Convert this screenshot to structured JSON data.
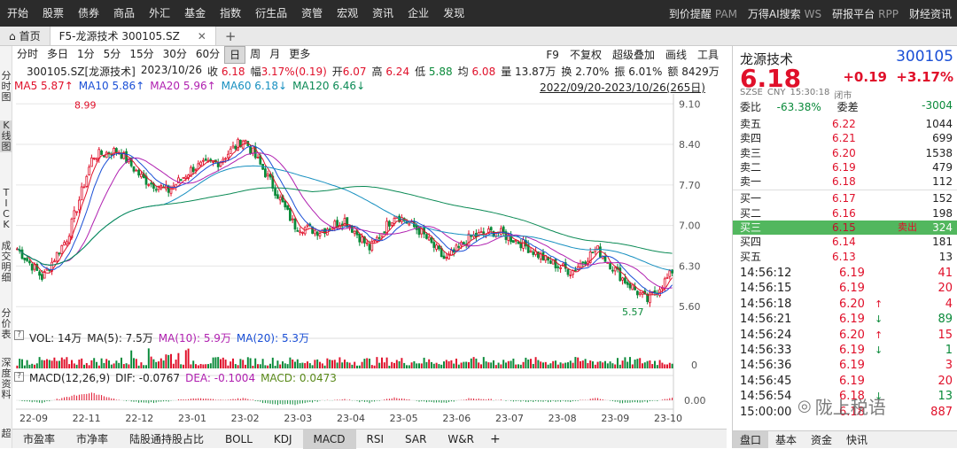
{
  "menu": {
    "items": [
      "开始",
      "股票",
      "债券",
      "商品",
      "外汇",
      "基金",
      "指数",
      "衍生品",
      "资管",
      "宏观",
      "资讯",
      "企业",
      "发现"
    ],
    "right": [
      {
        "label": "到价提醒",
        "en": "PAM"
      },
      {
        "label": "万得AI搜索",
        "en": "WS"
      },
      {
        "label": "研报平台",
        "en": "RPP"
      },
      {
        "label": "财经资讯",
        "en": ""
      }
    ]
  },
  "tabs": {
    "home": "首页",
    "active": "F5-龙源技术 300105.SZ",
    "add": "+"
  },
  "left_strip": [
    "分时图",
    "K线图",
    "TICK",
    "成交明细",
    "分价表",
    "深度资料",
    "超"
  ],
  "toolbar": {
    "periods": [
      "分时",
      "多日",
      "1分",
      "5分",
      "15分",
      "30分",
      "60分",
      "日",
      "周",
      "月",
      "更多"
    ],
    "active_period": "日",
    "right": [
      "F9",
      "不复权",
      "超级叠加",
      "画线",
      "工具"
    ]
  },
  "info": {
    "code": "300105.SZ[龙源技术]",
    "date": "2023/10/26",
    "close_label": "收",
    "close": "6.18",
    "chg_label": "幅",
    "chg": "3.17%(0.19)",
    "open_label": "开",
    "open": "6.07",
    "high_label": "高",
    "high": "6.24",
    "low_label": "低",
    "low": "5.88",
    "avg_label": "均",
    "avg": "6.08",
    "vol_label": "量",
    "vol": "13.87万",
    "turn_label": "换",
    "turn": "2.70%",
    "amp_label": "振",
    "amp": "6.01%",
    "amt_label": "额",
    "amt": "8429万"
  },
  "ma": {
    "ma5": "MA5 5.87↑",
    "ma10": "MA10 5.86↑",
    "ma20": "MA20 5.96↑",
    "ma60": "MA60 6.18↓",
    "ma120": "MA120 6.46↓",
    "range": "2022/09/20-2023/10/26(265日)"
  },
  "volume": {
    "title": "VOL: 14万",
    "ma5": "MA(5): 7.5万",
    "ma10": "MA(10): 5.9万",
    "ma20": "MA(20): 5.3万",
    "zero": "0"
  },
  "macd": {
    "title": "MACD(12,26,9)",
    "dif": "DIF: -0.0767",
    "dea": "DEA: -0.1004",
    "macd": "MACD: 0.0473",
    "zero": "0.00"
  },
  "bottom_tabs": [
    "市盈率",
    "市净率",
    "陆股通持股占比",
    "BOLL",
    "KDJ",
    "MACD",
    "RSI",
    "SAR",
    "W&R",
    "+"
  ],
  "bottom_active": "MACD",
  "chart_data": {
    "type": "candlestick",
    "y_ticks": [
      9.1,
      8.4,
      7.7,
      7.0,
      6.3,
      5.6
    ],
    "ylim": [
      5.45,
      9.15
    ],
    "x_labels": [
      "22-09",
      "22-11",
      "22-12",
      "23-01",
      "23-02",
      "23-03",
      "23-04",
      "23-05",
      "23-06",
      "23-07",
      "23-08",
      "23-09",
      "23-10"
    ],
    "annotations": [
      {
        "label": "8.99",
        "value": 8.99
      },
      {
        "label": "5.57",
        "value": 5.57
      }
    ],
    "close_path": [
      [
        "22-09",
        6.6
      ],
      [
        "22-10",
        6.1
      ],
      [
        "22-11",
        6.8
      ],
      [
        "22-11",
        8.2
      ],
      [
        "22-12",
        8.3
      ],
      [
        "22-12",
        7.8
      ],
      [
        "23-01",
        7.6
      ],
      [
        "23-01",
        8.0
      ],
      [
        "23-02",
        8.1
      ],
      [
        "23-02",
        8.5
      ],
      [
        "23-03",
        7.8
      ],
      [
        "23-03",
        7.0
      ],
      [
        "23-04",
        6.9
      ],
      [
        "23-04",
        7.1
      ],
      [
        "23-04",
        6.6
      ],
      [
        "23-05",
        7.2
      ],
      [
        "23-05",
        6.9
      ],
      [
        "23-06",
        6.4
      ],
      [
        "23-06",
        6.8
      ],
      [
        "23-07",
        6.9
      ],
      [
        "23-07",
        6.7
      ],
      [
        "23-08",
        6.4
      ],
      [
        "23-08",
        6.2
      ],
      [
        "23-09",
        6.6
      ],
      [
        "23-09",
        6.1
      ],
      [
        "23-10",
        5.7
      ],
      [
        "23-10",
        6.18
      ]
    ],
    "series": [
      {
        "name": "MA5",
        "color": "#e0102a"
      },
      {
        "name": "MA10",
        "color": "#1a4fd6"
      },
      {
        "name": "MA20",
        "color": "#b020b0"
      },
      {
        "name": "MA60",
        "color": "#1890c0"
      },
      {
        "name": "MA120",
        "color": "#0b8a55"
      }
    ]
  },
  "quote": {
    "name": "龙源技术",
    "code": "300105",
    "price": "6.18",
    "chg": "+0.19",
    "pct": "+3.17%",
    "sub": [
      "SZSE",
      "CNY",
      "15:30:18",
      "闭市"
    ],
    "ratio_label": "委比",
    "ratio": "-63.38%",
    "diff_label": "委差",
    "diff": "-3004",
    "asks": [
      {
        "label": "卖五",
        "price": "6.22",
        "vol": "1044"
      },
      {
        "label": "卖四",
        "price": "6.21",
        "vol": "699"
      },
      {
        "label": "卖三",
        "price": "6.20",
        "vol": "1538"
      },
      {
        "label": "卖二",
        "price": "6.19",
        "vol": "479"
      },
      {
        "label": "卖一",
        "price": "6.18",
        "vol": "112"
      }
    ],
    "bids": [
      {
        "label": "买一",
        "price": "6.17",
        "vol": "152"
      },
      {
        "label": "买二",
        "price": "6.16",
        "vol": "198"
      },
      {
        "label": "买三",
        "price": "6.15",
        "vol": "324",
        "tag": "卖出"
      },
      {
        "label": "买四",
        "price": "6.14",
        "vol": "181"
      },
      {
        "label": "买五",
        "price": "6.13",
        "vol": "13"
      }
    ],
    "trades": [
      {
        "time": "14:56:12",
        "price": "6.19",
        "arrow": "",
        "vol": "41"
      },
      {
        "time": "14:56:15",
        "price": "6.19",
        "arrow": "",
        "vol": "20"
      },
      {
        "time": "14:56:18",
        "price": "6.20",
        "arrow": "up",
        "vol": "4"
      },
      {
        "time": "14:56:21",
        "price": "6.19",
        "arrow": "down",
        "vol": "89"
      },
      {
        "time": "14:56:24",
        "price": "6.20",
        "arrow": "up",
        "vol": "15"
      },
      {
        "time": "14:56:33",
        "price": "6.19",
        "arrow": "down",
        "vol": "1"
      },
      {
        "time": "14:56:36",
        "price": "6.19",
        "arrow": "",
        "vol": "3"
      },
      {
        "time": "14:56:45",
        "price": "6.19",
        "arrow": "",
        "vol": "20"
      },
      {
        "time": "14:56:54",
        "price": "6.18",
        "arrow": "down",
        "vol": "13"
      },
      {
        "time": "15:00:00",
        "price": "6.18",
        "arrow": "",
        "vol": "887"
      }
    ],
    "tabs": [
      "盘口",
      "基本",
      "资金",
      "快讯"
    ],
    "active_tab": "盘口"
  },
  "watermark": "陇上税语",
  "colors": {
    "up": "#e0102a",
    "down": "#0a8a3a",
    "menubar": "#2b2b2b",
    "highlight_row": "#52b75e"
  }
}
